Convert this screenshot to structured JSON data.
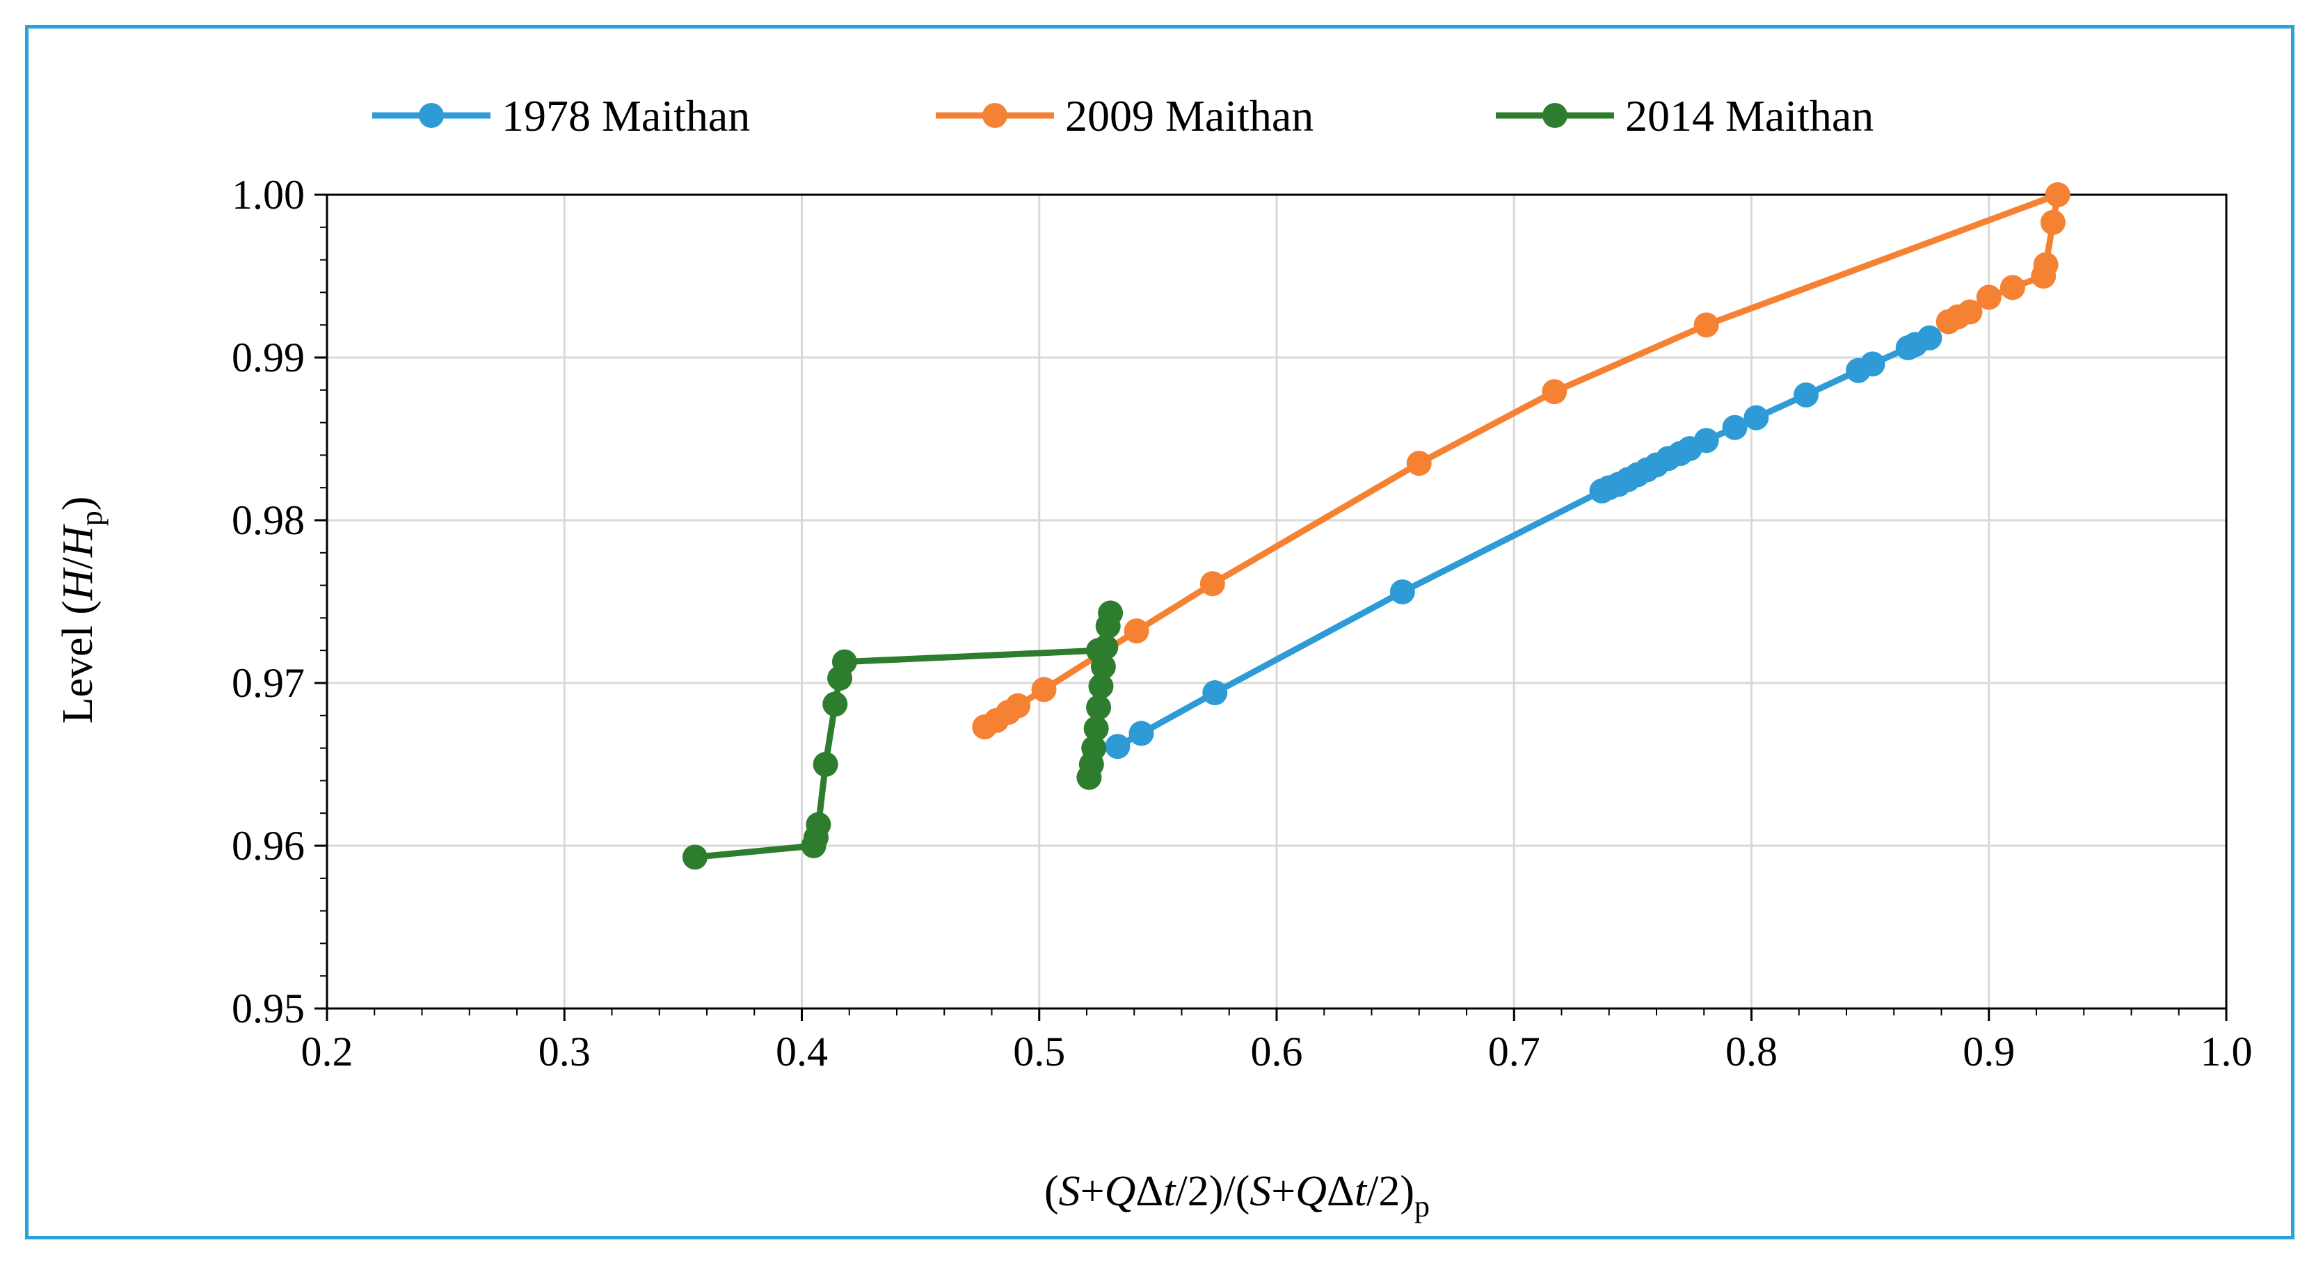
{
  "chart_data": {
    "type": "line",
    "title": "",
    "xlabel_parts": {
      "open": "(",
      "s": "S",
      "plus": "+",
      "q": "Q",
      "delta": "Δ",
      "t": "t",
      "div": "/2)/(",
      "s2": "S",
      "plus2": "+",
      "q2": "Q",
      "delta2": "Δ",
      "t2": "t",
      "close": "/2)",
      "sub": "p"
    },
    "ylabel_parts": {
      "prefix": "Level (",
      "h": "H",
      "slash": "/",
      "hp": "H",
      "sub": "p",
      "close": ")"
    },
    "xlim": [
      0.2,
      1.0
    ],
    "ylim": [
      0.95,
      1.0
    ],
    "x_ticks": [
      "0.2",
      "0.3",
      "0.4",
      "0.5",
      "0.6",
      "0.7",
      "0.8",
      "0.9",
      "1.0"
    ],
    "y_ticks": [
      "0.95",
      "0.96",
      "0.97",
      "0.98",
      "0.99",
      "1.00"
    ],
    "grid": true,
    "legend_position": "top",
    "series": [
      {
        "name": "1978 Maithan",
        "color": "#2e9bd6",
        "points": [
          [
            0.533,
            0.9661
          ],
          [
            0.543,
            0.9669
          ],
          [
            0.574,
            0.9694
          ],
          [
            0.653,
            0.9756
          ],
          [
            0.737,
            0.9818
          ],
          [
            0.74,
            0.982
          ],
          [
            0.744,
            0.9822
          ],
          [
            0.748,
            0.9825
          ],
          [
            0.752,
            0.9828
          ],
          [
            0.756,
            0.9831
          ],
          [
            0.76,
            0.9834
          ],
          [
            0.765,
            0.9838
          ],
          [
            0.77,
            0.9841
          ],
          [
            0.774,
            0.9844
          ],
          [
            0.781,
            0.9849
          ],
          [
            0.793,
            0.9857
          ],
          [
            0.802,
            0.9863
          ],
          [
            0.823,
            0.9877
          ],
          [
            0.845,
            0.9892
          ],
          [
            0.851,
            0.9896
          ],
          [
            0.866,
            0.9906
          ],
          [
            0.869,
            0.9908
          ],
          [
            0.875,
            0.9912
          ]
        ]
      },
      {
        "name": "2009 Maithan",
        "color": "#f58233",
        "points": [
          [
            0.477,
            0.9673
          ],
          [
            0.482,
            0.9677
          ],
          [
            0.487,
            0.9682
          ],
          [
            0.491,
            0.9686
          ],
          [
            0.502,
            0.9696
          ],
          [
            0.541,
            0.9732
          ],
          [
            0.573,
            0.9761
          ],
          [
            0.66,
            0.9835
          ],
          [
            0.717,
            0.9879
          ],
          [
            0.781,
            0.992
          ],
          [
            0.929,
            1.0
          ],
          [
            0.927,
            0.9983
          ],
          [
            0.924,
            0.9957
          ],
          [
            0.923,
            0.995
          ],
          [
            0.91,
            0.9943
          ],
          [
            0.9,
            0.9937
          ],
          [
            0.892,
            0.9928
          ],
          [
            0.887,
            0.9925
          ],
          [
            0.883,
            0.9922
          ]
        ]
      },
      {
        "name": "2014 Maithan",
        "color": "#2e7d2e",
        "points": [
          [
            0.355,
            0.9593
          ],
          [
            0.405,
            0.96
          ],
          [
            0.406,
            0.9605
          ],
          [
            0.407,
            0.9613
          ],
          [
            0.41,
            0.965
          ],
          [
            0.414,
            0.9687
          ],
          [
            0.416,
            0.9703
          ],
          [
            0.418,
            0.9713
          ],
          [
            0.525,
            0.972
          ],
          [
            0.53,
            0.9743
          ],
          [
            0.529,
            0.9735
          ],
          [
            0.528,
            0.9722
          ],
          [
            0.527,
            0.971
          ],
          [
            0.526,
            0.9698
          ],
          [
            0.525,
            0.9685
          ],
          [
            0.524,
            0.9672
          ],
          [
            0.523,
            0.966
          ],
          [
            0.522,
            0.965
          ],
          [
            0.521,
            0.9642
          ]
        ]
      }
    ]
  }
}
